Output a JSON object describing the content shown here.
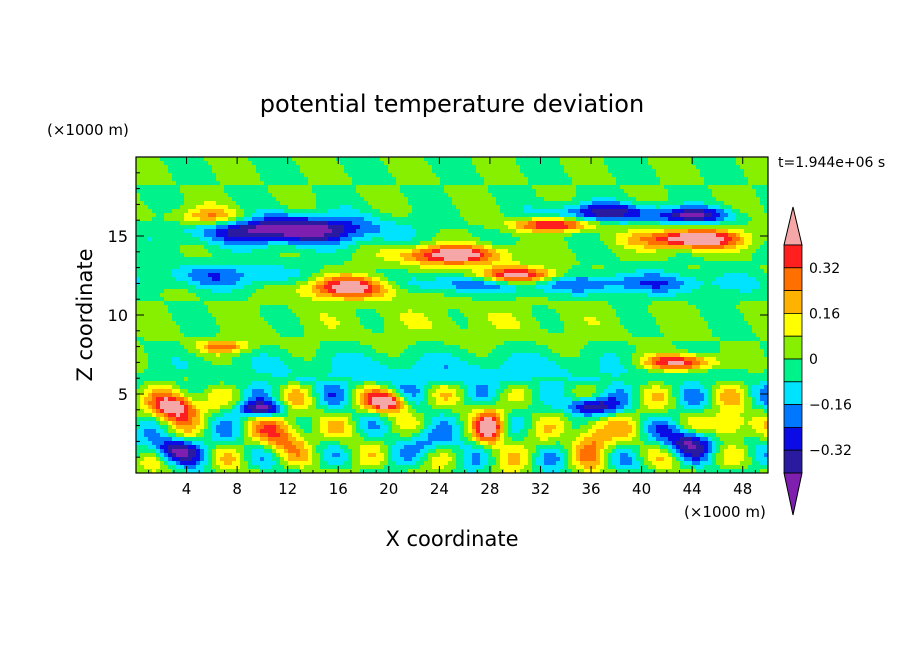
{
  "chart_data": {
    "type": "heatmap",
    "title": "potential temperature deviation",
    "xlabel": "X coordinate",
    "ylabel": "Z coordinate",
    "x_unit": "(×1000 m)",
    "y_unit": "(×1000 m)",
    "time_label": "t=1.944e+06 s",
    "xlim": [
      0,
      50
    ],
    "ylim": [
      0,
      20
    ],
    "x_ticks": [
      4,
      8,
      12,
      16,
      20,
      24,
      28,
      32,
      36,
      40,
      44,
      48
    ],
    "y_ticks": [
      5,
      10,
      15
    ],
    "colorbar": {
      "levels": [
        -0.48,
        -0.4,
        -0.32,
        -0.24,
        -0.16,
        -0.08,
        0,
        0.08,
        0.16,
        0.24,
        0.32,
        0.4,
        0.48
      ],
      "colors": [
        "#7f1faf",
        "#2a1aa0",
        "#0b0be6",
        "#0077ff",
        "#00e3ff",
        "#00f28a",
        "#86f000",
        "#ffff00",
        "#ffb300",
        "#ff7000",
        "#ff1f1f",
        "#f5a7a7"
      ],
      "tick_labels": [
        "0.32",
        "0.16",
        "0",
        "-0.16",
        "-0.32"
      ],
      "tick_values": [
        0.32,
        0.16,
        0,
        -0.16,
        -0.32
      ]
    },
    "field_features": [
      {
        "x": 12,
        "z": 15.4,
        "sx": 7,
        "sz": 0.9,
        "v": -0.5
      },
      {
        "x": 37,
        "z": 16.5,
        "sx": 4,
        "sz": 0.6,
        "v": -0.35
      },
      {
        "x": 44,
        "z": 16.3,
        "sx": 3,
        "sz": 0.5,
        "v": -0.4
      },
      {
        "x": 17,
        "z": 11.8,
        "sx": 4,
        "sz": 0.7,
        "v": 0.55
      },
      {
        "x": 25,
        "z": 13.8,
        "sx": 4,
        "sz": 0.6,
        "v": 0.5
      },
      {
        "x": 30,
        "z": 12.5,
        "sx": 3.5,
        "sz": 0.5,
        "v": 0.5
      },
      {
        "x": 33,
        "z": 15.7,
        "sx": 3,
        "sz": 0.4,
        "v": 0.45
      },
      {
        "x": 44,
        "z": 14.8,
        "sx": 4,
        "sz": 0.6,
        "v": 0.55
      },
      {
        "x": 6,
        "z": 16.2,
        "sx": 3,
        "sz": 0.6,
        "v": 0.3
      },
      {
        "x": 25,
        "z": 12,
        "sx": 10,
        "sz": 0.6,
        "v": -0.22
      },
      {
        "x": 7,
        "z": 12.5,
        "sx": 6,
        "sz": 0.8,
        "v": -0.2
      },
      {
        "x": 40,
        "z": 12,
        "sx": 8,
        "sz": 0.7,
        "v": -0.2
      },
      {
        "x": 25,
        "z": 9.5,
        "sx": 14,
        "sz": 1.5,
        "v": 0.05
      },
      {
        "x": 25,
        "z": 6.5,
        "sx": 20,
        "sz": 1.2,
        "v": -0.12
      },
      {
        "x": 43,
        "z": 7,
        "sx": 3,
        "sz": 0.5,
        "v": 0.45
      },
      {
        "x": 7,
        "z": 8,
        "sx": 2,
        "sz": 0.4,
        "v": 0.3
      },
      {
        "x": 3,
        "z": 4.2,
        "sx": 1.8,
        "sz": 0.9,
        "v": 0.55
      },
      {
        "x": 20,
        "z": 4.5,
        "sx": 1.5,
        "sz": 0.6,
        "v": 0.5
      },
      {
        "x": 28,
        "z": 2.8,
        "sx": 1.2,
        "sz": 1.1,
        "v": 0.5
      },
      {
        "x": 12,
        "z": 2.5,
        "sx": 2,
        "sz": 1.2,
        "v": 0.3
      },
      {
        "x": 36,
        "z": 2.4,
        "sx": 1.5,
        "sz": 1.3,
        "v": 0.3
      },
      {
        "x": 3,
        "z": 1.5,
        "sx": 2,
        "sz": 0.8,
        "v": -0.4
      },
      {
        "x": 10,
        "z": 4,
        "sx": 1.8,
        "sz": 0.5,
        "v": -0.4
      },
      {
        "x": 36,
        "z": 4.2,
        "sx": 2,
        "sz": 0.6,
        "v": -0.45
      },
      {
        "x": 44,
        "z": 2,
        "sx": 2,
        "sz": 0.9,
        "v": -0.4
      },
      {
        "x": 24,
        "z": 2,
        "sx": 2.5,
        "sz": 0.9,
        "v": -0.2
      },
      {
        "x": 47,
        "z": 3,
        "sx": 1.5,
        "sz": 0.8,
        "v": 0.35
      }
    ]
  }
}
